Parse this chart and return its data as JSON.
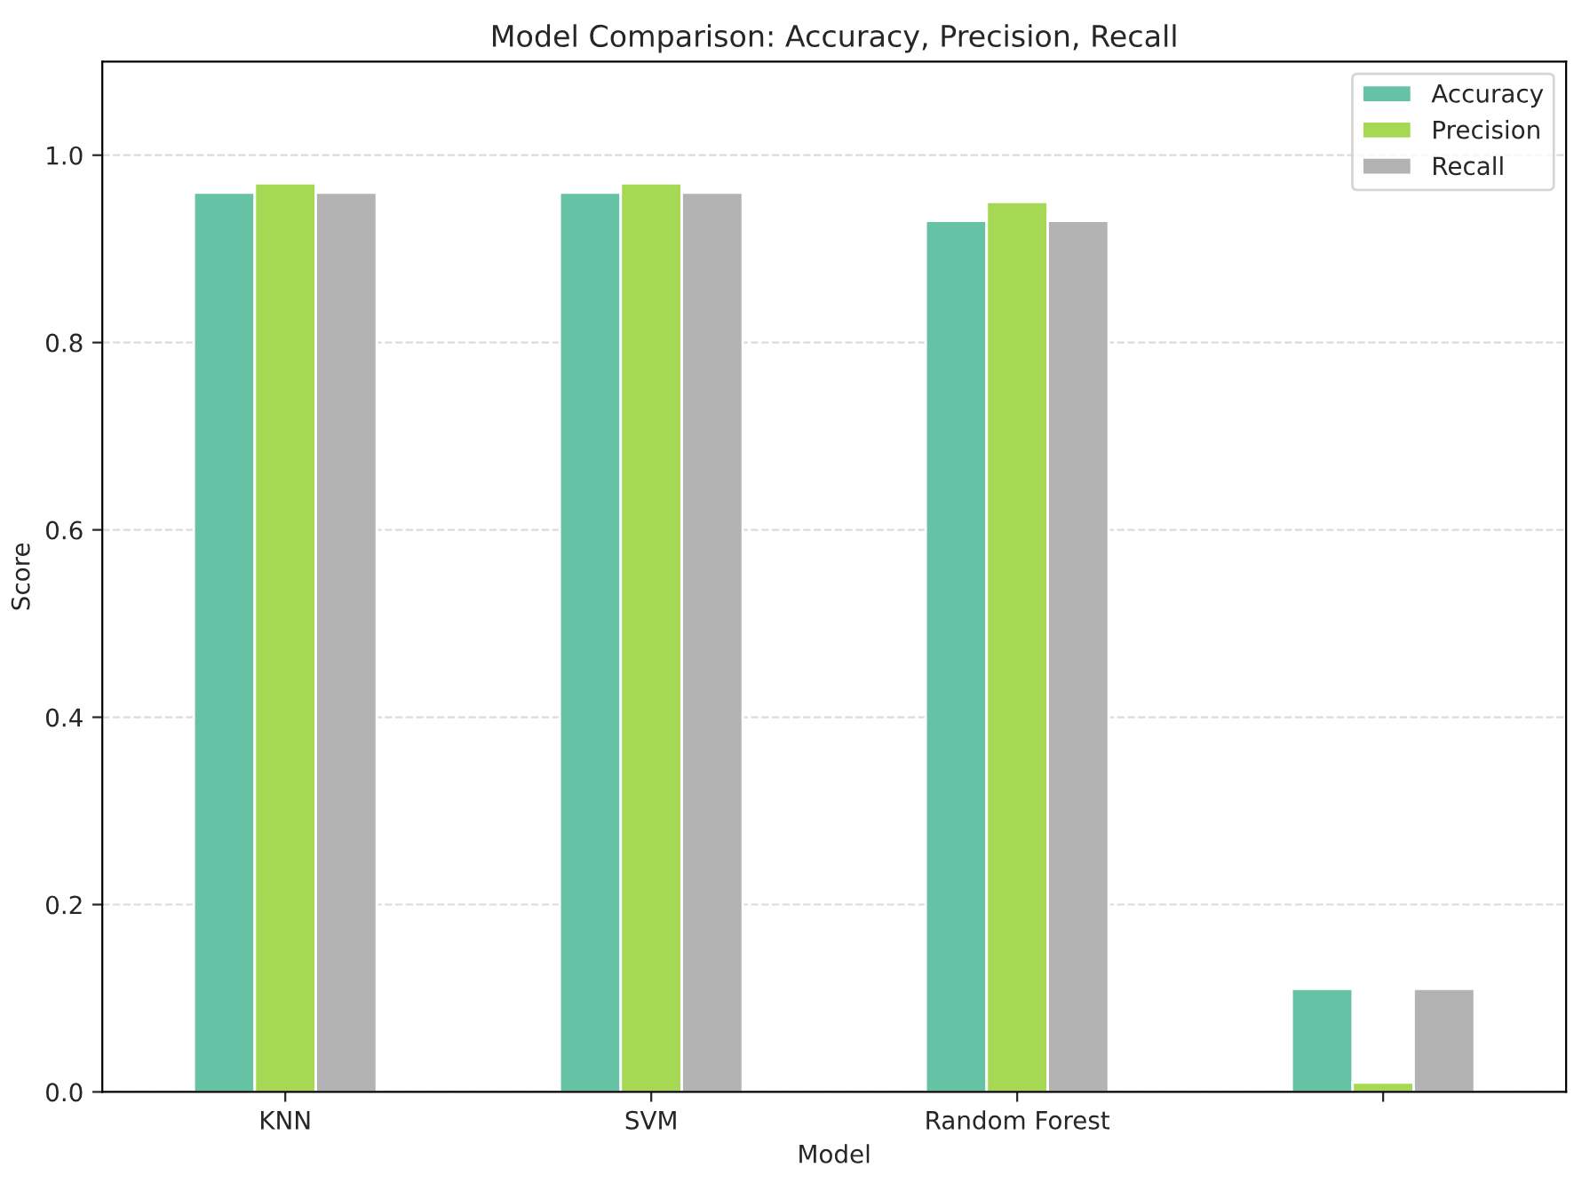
{
  "chart_data": {
    "type": "bar",
    "title": "Model Comparison: Accuracy, Precision, Recall",
    "xlabel": "Model",
    "ylabel": "Score",
    "categories": [
      "KNN",
      "SVM",
      "Random Forest",
      null
    ],
    "series": [
      {
        "name": "Accuracy",
        "color": "#66c2a5",
        "values": [
          0.96,
          0.96,
          0.93,
          0.11
        ]
      },
      {
        "name": "Precision",
        "color": "#a6d854",
        "values": [
          0.97,
          0.97,
          0.95,
          0.01
        ]
      },
      {
        "name": "Recall",
        "color": "#b3b3b3",
        "values": [
          0.96,
          0.96,
          0.93,
          0.11
        ]
      }
    ],
    "ylim": [
      0,
      1.1
    ],
    "yticks": [
      {
        "value": 0,
        "label": "0.0"
      },
      0.2,
      0.4,
      0.6,
      0.8,
      {
        "value": 1,
        "label": "1.0"
      }
    ],
    "grid": "y",
    "legend": "top right"
  }
}
